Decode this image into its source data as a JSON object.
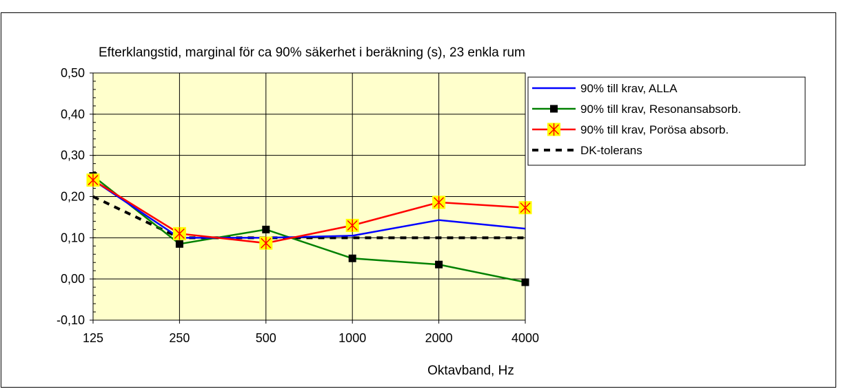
{
  "chart_data": {
    "type": "line",
    "title": "Efterklangstid, marginal för ca 90% säkerhet i beräkning (s), 23 enkla rum",
    "xlabel": "Oktavband, Hz",
    "ylabel": "",
    "categories": [
      "125",
      "250",
      "500",
      "1000",
      "2000",
      "4000"
    ],
    "ylim": [
      -0.1,
      0.5
    ],
    "yticks": [
      "-0,10",
      "0,00",
      "0,10",
      "0,20",
      "0,30",
      "0,40",
      "0,50"
    ],
    "yticks_values": [
      -0.1,
      0.0,
      0.1,
      0.2,
      0.3,
      0.4,
      0.5
    ],
    "grid": true,
    "legend_position": "top-right",
    "plot_background": "#ffffcc",
    "series": [
      {
        "name": "90% till krav, ALLA",
        "values": [
          0.24,
          0.1,
          0.1,
          0.105,
          0.143,
          0.122
        ],
        "color": "#0000ff",
        "marker": "none",
        "dash": "solid"
      },
      {
        "name": "90% till krav, Resonansabsorb.",
        "values": [
          0.25,
          0.085,
          0.12,
          0.05,
          0.035,
          -0.008
        ],
        "color": "#008000",
        "marker": "square",
        "dash": "solid"
      },
      {
        "name": "90% till krav, Porösa absorb.",
        "values": [
          0.24,
          0.11,
          0.087,
          0.13,
          0.186,
          0.173
        ],
        "color": "#ff0000",
        "marker": "star",
        "dash": "solid"
      },
      {
        "name": "DK-tolerans",
        "values": [
          0.2,
          0.1,
          0.1,
          0.1,
          0.1,
          0.1
        ],
        "color": "#000000",
        "marker": "none",
        "dash": "dashed"
      }
    ]
  }
}
